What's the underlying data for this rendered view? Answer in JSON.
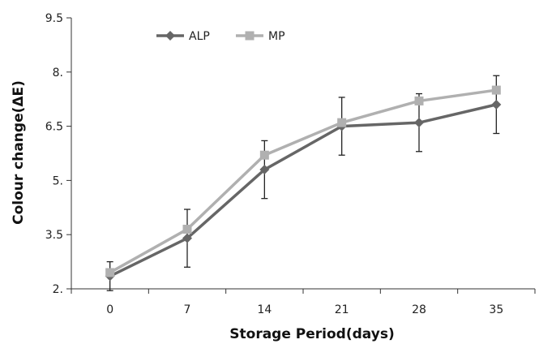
{
  "chart_data": {
    "type": "line",
    "title": "",
    "xlabel": "Storage Period(days)",
    "ylabel": "Colour change(ΔE)",
    "categories": [
      "0",
      "7",
      "14",
      "21",
      "28",
      "35"
    ],
    "yticks": [
      "2.",
      "3.5",
      "5.",
      "6.5",
      "8.",
      "9.5"
    ],
    "ylim": [
      2.0,
      9.5
    ],
    "grid": false,
    "legend_position": "top-left",
    "series": [
      {
        "name": "ALP",
        "color": "#666666",
        "marker": "diamond",
        "values": [
          2.35,
          3.4,
          5.3,
          6.5,
          6.6,
          7.1
        ],
        "error": [
          0.4,
          0.8,
          0.8,
          0.8,
          0.8,
          0.8
        ]
      },
      {
        "name": "MP",
        "color": "#b0b0b0",
        "marker": "square",
        "values": [
          2.45,
          3.65,
          5.7,
          6.6,
          7.2,
          7.5
        ],
        "error": [
          0,
          0,
          0,
          0,
          0,
          0
        ]
      }
    ]
  }
}
